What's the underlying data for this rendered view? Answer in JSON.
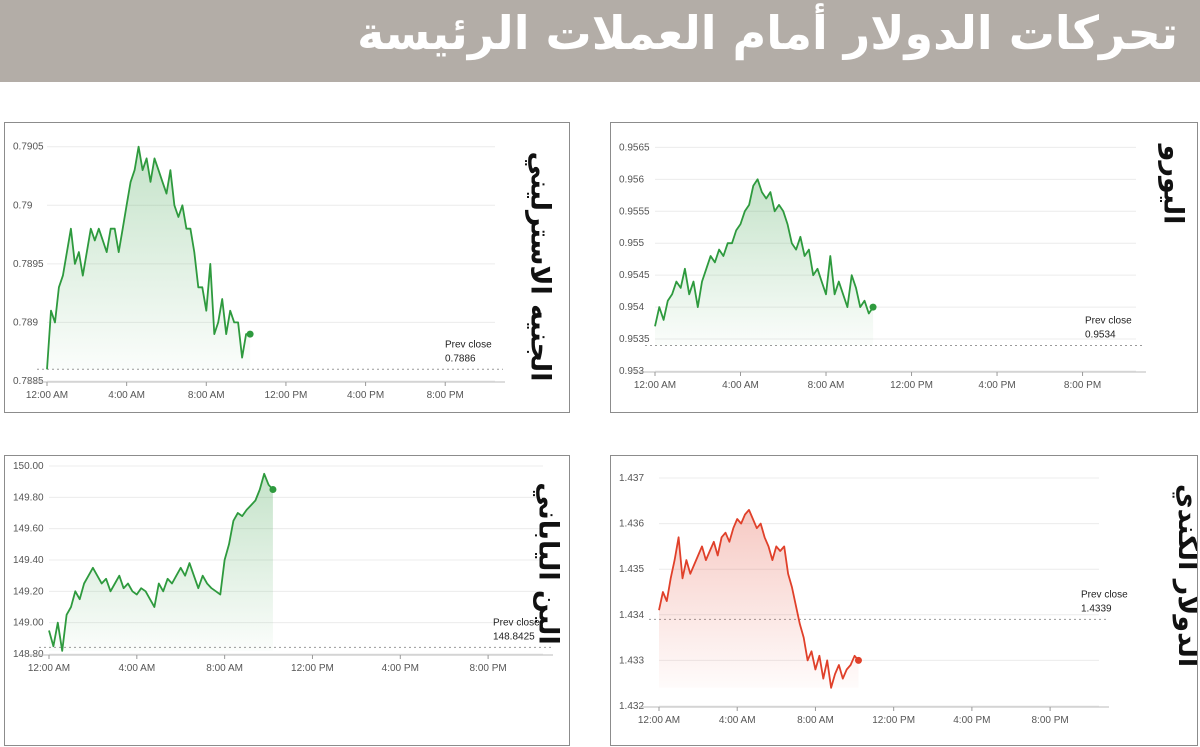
{
  "header": {
    "title": "تحركات الدولار أمام العملات الرئيسة"
  },
  "colors": {
    "header_bg": "#b3ada7",
    "up_line": "#2e9a3e",
    "down_line": "#e0402a"
  },
  "chart_data": [
    {
      "id": "gbp",
      "type": "line",
      "label": "الجنيه الاسترليني",
      "prev_close_label": "Prev close",
      "prev_close": 0.7886,
      "prev_close_text": "0.7886",
      "color": "#2e9a3e",
      "fill": "#2e9a3e",
      "x_ticks": [
        "12:00 AM",
        "4:00 AM",
        "8:00 AM",
        "12:00 PM",
        "4:00 PM",
        "8:00 PM"
      ],
      "y_ticks": [
        "0.7905",
        "0.79",
        "0.7895",
        "0.789",
        "0.7885"
      ],
      "y_tick_values": [
        0.7905,
        0.79,
        0.7895,
        0.789,
        0.7885
      ],
      "ylim": [
        0.7885,
        0.7906
      ],
      "xlim": [
        0,
        22.5
      ],
      "x": [
        0,
        0.2,
        0.4,
        0.6,
        0.8,
        1.0,
        1.2,
        1.4,
        1.6,
        1.8,
        2.0,
        2.2,
        2.4,
        2.6,
        2.8,
        3.0,
        3.2,
        3.4,
        3.6,
        3.8,
        4.0,
        4.2,
        4.4,
        4.6,
        4.8,
        5.0,
        5.2,
        5.4,
        5.6,
        5.8,
        6.0,
        6.2,
        6.4,
        6.6,
        6.8,
        7.0,
        7.2,
        7.4,
        7.6,
        7.8,
        8.0,
        8.2,
        8.4,
        8.6,
        8.8,
        9.0,
        9.2,
        9.4,
        9.6,
        9.8,
        10.0,
        10.2
      ],
      "y": [
        0.7886,
        0.7891,
        0.789,
        0.7893,
        0.7894,
        0.7896,
        0.7898,
        0.7895,
        0.7896,
        0.7894,
        0.7896,
        0.7898,
        0.7897,
        0.7898,
        0.7897,
        0.7896,
        0.7898,
        0.7898,
        0.7896,
        0.7898,
        0.79,
        0.7902,
        0.7903,
        0.7905,
        0.7903,
        0.7904,
        0.7902,
        0.7904,
        0.7903,
        0.7902,
        0.7901,
        0.7903,
        0.79,
        0.7899,
        0.79,
        0.7898,
        0.7898,
        0.7896,
        0.7893,
        0.7893,
        0.7891,
        0.7895,
        0.7889,
        0.789,
        0.7892,
        0.7889,
        0.7891,
        0.789,
        0.789,
        0.7887,
        0.7889,
        0.7889
      ]
    },
    {
      "id": "eur",
      "type": "line",
      "label": "اليورو",
      "prev_close_label": "Prev close",
      "prev_close": 0.9534,
      "prev_close_text": "0.9534",
      "color": "#2e9a3e",
      "fill": "#2e9a3e",
      "x_ticks": [
        "12:00 AM",
        "4:00 AM",
        "8:00 AM",
        "12:00 PM",
        "4:00 PM",
        "8:00 PM"
      ],
      "y_ticks": [
        "0.9565",
        "0.956",
        "0.9555",
        "0.955",
        "0.9545",
        "0.954",
        "0.9535",
        "0.953"
      ],
      "y_tick_values": [
        0.9565,
        0.956,
        0.9555,
        0.955,
        0.9545,
        0.954,
        0.9535,
        0.953
      ],
      "ylim": [
        0.953,
        0.9566
      ],
      "xlim": [
        0,
        22.5
      ],
      "x": [
        0,
        0.2,
        0.4,
        0.6,
        0.8,
        1.0,
        1.2,
        1.4,
        1.6,
        1.8,
        2.0,
        2.2,
        2.4,
        2.6,
        2.8,
        3.0,
        3.2,
        3.4,
        3.6,
        3.8,
        4.0,
        4.2,
        4.4,
        4.6,
        4.8,
        5.0,
        5.2,
        5.4,
        5.6,
        5.8,
        6.0,
        6.2,
        6.4,
        6.6,
        6.8,
        7.0,
        7.2,
        7.4,
        7.6,
        7.8,
        8.0,
        8.2,
        8.4,
        8.6,
        8.8,
        9.0,
        9.2,
        9.4,
        9.6,
        9.8,
        10.0,
        10.2
      ],
      "y": [
        0.9537,
        0.954,
        0.9538,
        0.9541,
        0.9542,
        0.9544,
        0.9543,
        0.9546,
        0.9542,
        0.9544,
        0.954,
        0.9544,
        0.9546,
        0.9548,
        0.9547,
        0.9549,
        0.9548,
        0.955,
        0.955,
        0.9552,
        0.9553,
        0.9555,
        0.9556,
        0.9559,
        0.956,
        0.9558,
        0.9557,
        0.9558,
        0.9555,
        0.9556,
        0.9555,
        0.9553,
        0.955,
        0.9549,
        0.9551,
        0.9548,
        0.9549,
        0.9545,
        0.9546,
        0.9544,
        0.9542,
        0.9548,
        0.9542,
        0.9544,
        0.9542,
        0.954,
        0.9545,
        0.9543,
        0.954,
        0.9541,
        0.9539,
        0.954
      ]
    },
    {
      "id": "jpy",
      "type": "line",
      "label": "الين الياباني",
      "prev_close_label": "Prev close",
      "prev_close": 148.8425,
      "prev_close_text": "148.8425",
      "color": "#2e9a3e",
      "fill": "#2e9a3e",
      "x_ticks": [
        "12:00 AM",
        "4:00 AM",
        "8:00 AM",
        "12:00 PM",
        "4:00 PM",
        "8:00 PM"
      ],
      "y_ticks": [
        "150.00",
        "149.80",
        "149.60",
        "149.40",
        "149.20",
        "149.00",
        "148.80"
      ],
      "y_tick_values": [
        150.0,
        149.8,
        149.6,
        149.4,
        149.2,
        149.0,
        148.8
      ],
      "ylim": [
        148.8,
        150.0
      ],
      "xlim": [
        0,
        22.5
      ],
      "x": [
        0,
        0.2,
        0.4,
        0.6,
        0.8,
        1.0,
        1.2,
        1.4,
        1.6,
        1.8,
        2.0,
        2.2,
        2.4,
        2.6,
        2.8,
        3.0,
        3.2,
        3.4,
        3.6,
        3.8,
        4.0,
        4.2,
        4.4,
        4.6,
        4.8,
        5.0,
        5.2,
        5.4,
        5.6,
        5.8,
        6.0,
        6.2,
        6.4,
        6.6,
        6.8,
        7.0,
        7.2,
        7.4,
        7.6,
        7.8,
        8.0,
        8.2,
        8.4,
        8.6,
        8.8,
        9.0,
        9.2,
        9.4,
        9.6,
        9.8,
        10.0,
        10.2
      ],
      "y": [
        148.95,
        148.85,
        149.0,
        148.82,
        149.05,
        149.1,
        149.2,
        149.15,
        149.25,
        149.3,
        149.35,
        149.3,
        149.25,
        149.28,
        149.2,
        149.25,
        149.3,
        149.22,
        149.25,
        149.2,
        149.18,
        149.22,
        149.2,
        149.15,
        149.1,
        149.25,
        149.2,
        149.28,
        149.25,
        149.3,
        149.35,
        149.3,
        149.38,
        149.3,
        149.22,
        149.3,
        149.25,
        149.22,
        149.2,
        149.18,
        149.4,
        149.5,
        149.65,
        149.7,
        149.68,
        149.72,
        149.75,
        149.78,
        149.85,
        149.95,
        149.88,
        149.85
      ]
    },
    {
      "id": "cad",
      "type": "line",
      "label": "الدولار الكندي",
      "prev_close_label": "Prev close",
      "prev_close": 1.4339,
      "prev_close_text": "1.4339",
      "color": "#e0402a",
      "fill": "#e0402a",
      "x_ticks": [
        "12:00 AM",
        "4:00 AM",
        "8:00 AM",
        "12:00 PM",
        "4:00 PM",
        "8:00 PM"
      ],
      "y_ticks": [
        "1.437",
        "1.436",
        "1.435",
        "1.434",
        "1.433",
        "1.432"
      ],
      "y_tick_values": [
        1.437,
        1.436,
        1.435,
        1.434,
        1.433,
        1.432
      ],
      "ylim": [
        1.432,
        1.437
      ],
      "xlim": [
        0,
        22.5
      ],
      "x": [
        0,
        0.2,
        0.4,
        0.6,
        0.8,
        1.0,
        1.2,
        1.4,
        1.6,
        1.8,
        2.0,
        2.2,
        2.4,
        2.6,
        2.8,
        3.0,
        3.2,
        3.4,
        3.6,
        3.8,
        4.0,
        4.2,
        4.4,
        4.6,
        4.8,
        5.0,
        5.2,
        5.4,
        5.6,
        5.8,
        6.0,
        6.2,
        6.4,
        6.6,
        6.8,
        7.0,
        7.2,
        7.4,
        7.6,
        7.8,
        8.0,
        8.2,
        8.4,
        8.6,
        8.8,
        9.0,
        9.2,
        9.4,
        9.6,
        9.8,
        10.0,
        10.2
      ],
      "y": [
        1.4341,
        1.4345,
        1.4343,
        1.4348,
        1.4352,
        1.4357,
        1.4348,
        1.4352,
        1.4349,
        1.4351,
        1.4353,
        1.4355,
        1.4352,
        1.4354,
        1.4356,
        1.4353,
        1.4357,
        1.4358,
        1.4356,
        1.4359,
        1.4361,
        1.436,
        1.4362,
        1.4363,
        1.4361,
        1.4359,
        1.436,
        1.4357,
        1.4355,
        1.4352,
        1.4355,
        1.4354,
        1.4355,
        1.4349,
        1.4346,
        1.4342,
        1.4338,
        1.4335,
        1.433,
        1.4332,
        1.4328,
        1.4331,
        1.4326,
        1.433,
        1.4324,
        1.4327,
        1.4329,
        1.4326,
        1.4328,
        1.4329,
        1.4331,
        1.433
      ]
    }
  ]
}
